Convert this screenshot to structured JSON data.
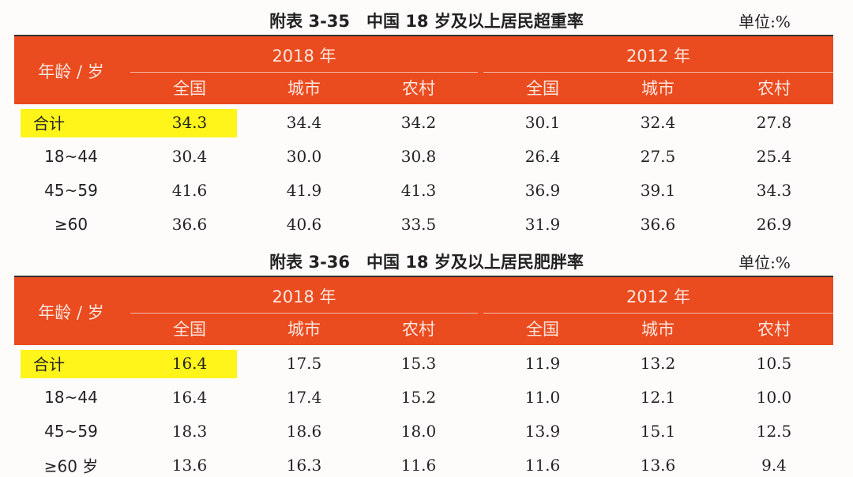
{
  "tables": [
    {
      "title": "附表 3-35　中国 18 岁及以上居民超重率",
      "unit": "单位:%",
      "row_header": "年龄 / 岁",
      "groups": [
        {
          "label": "2018 年",
          "columns": [
            "全国",
            "城市",
            "农村"
          ]
        },
        {
          "label": "2012 年",
          "columns": [
            "全国",
            "城市",
            "农村"
          ]
        }
      ],
      "rows": [
        [
          "合计",
          "34.3",
          "34.4",
          "34.2",
          "30.1",
          "32.4",
          "27.8"
        ],
        [
          "18~44",
          "30.4",
          "30.0",
          "30.8",
          "26.4",
          "27.5",
          "25.4"
        ],
        [
          "45~59",
          "41.6",
          "41.9",
          "41.3",
          "36.9",
          "39.1",
          "34.3"
        ],
        [
          "≥60",
          "36.6",
          "40.6",
          "33.5",
          "31.9",
          "36.6",
          "26.9"
        ]
      ]
    },
    {
      "title": "附表 3-36　中国 18 岁及以上居民肥胖率",
      "unit": "单位:%",
      "row_header": "年龄 / 岁",
      "groups": [
        {
          "label": "2018 年",
          "columns": [
            "全国",
            "城市",
            "农村"
          ]
        },
        {
          "label": "2012 年",
          "columns": [
            "全国",
            "城市",
            "农村"
          ]
        }
      ],
      "rows": [
        [
          "合计",
          "16.4",
          "17.5",
          "15.3",
          "11.9",
          "13.2",
          "10.5"
        ],
        [
          "18~44",
          "16.4",
          "17.4",
          "15.2",
          "11.0",
          "12.1",
          "10.0"
        ],
        [
          "45~59",
          "18.3",
          "18.6",
          "18.0",
          "13.9",
          "15.1",
          "12.5"
        ],
        [
          "≥60 岁",
          "13.6",
          "16.3",
          "11.6",
          "11.6",
          "13.6",
          "9.4"
        ]
      ]
    }
  ]
}
